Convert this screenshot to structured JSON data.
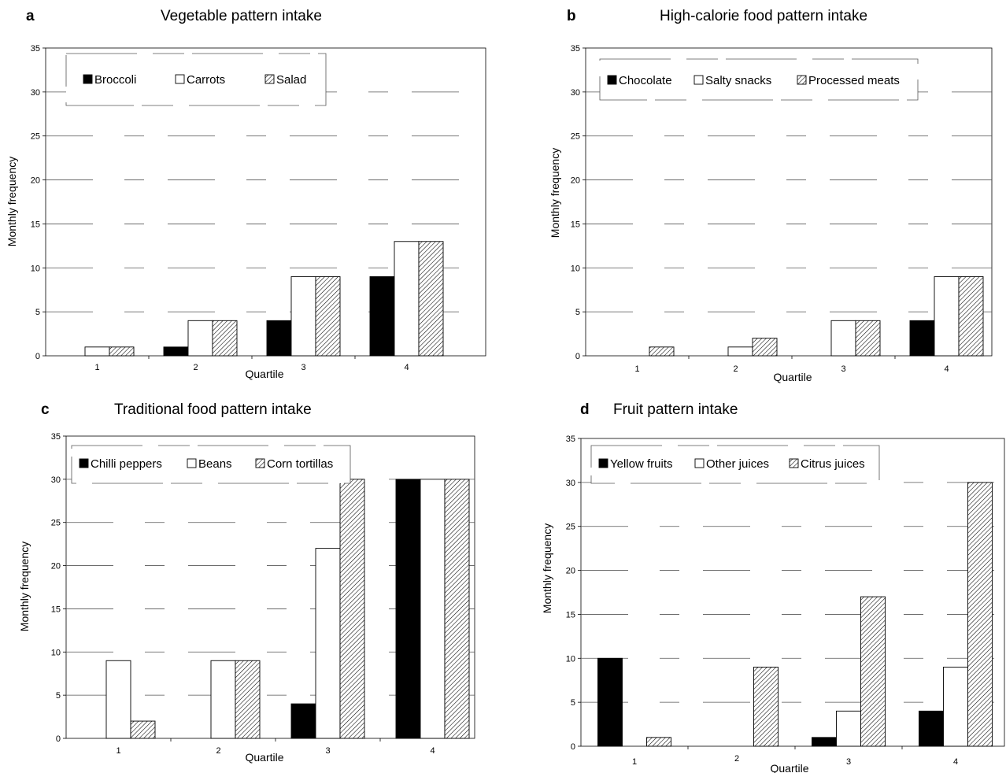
{
  "chart_data": [
    {
      "type": "bar",
      "panel": "a",
      "title": "Vegetable pattern intake",
      "xlabel": "Quartile",
      "ylabel": "Monthly frequency",
      "ylim": [
        0,
        35
      ],
      "yticks": [
        0,
        5,
        10,
        15,
        20,
        25,
        30,
        35
      ],
      "categories": [
        "1",
        "2",
        "3",
        "4"
      ],
      "series": [
        {
          "name": "Broccoli",
          "fill": "solid",
          "values": [
            0,
            1,
            4,
            9
          ]
        },
        {
          "name": "Carrots",
          "fill": "white",
          "values": [
            1,
            4,
            9,
            13
          ]
        },
        {
          "name": "Salad",
          "fill": "hatch",
          "values": [
            1,
            4,
            9,
            13
          ]
        }
      ],
      "grid": true,
      "legend": "top-left"
    },
    {
      "type": "bar",
      "panel": "b",
      "title": "High-calorie food pattern intake",
      "xlabel": "Quartile",
      "ylabel": "Monthly frequency",
      "ylim": [
        0,
        35
      ],
      "yticks": [
        0,
        5,
        10,
        15,
        20,
        25,
        30,
        35
      ],
      "categories": [
        "1",
        "2",
        "3",
        "4"
      ],
      "series": [
        {
          "name": "Chocolate",
          "fill": "solid",
          "values": [
            0,
            0,
            0,
            4
          ]
        },
        {
          "name": "Salty snacks",
          "fill": "white",
          "values": [
            0,
            1,
            4,
            9
          ]
        },
        {
          "name": "Processed meats",
          "fill": "hatch",
          "values": [
            1,
            2,
            4,
            9
          ]
        }
      ],
      "grid": true,
      "legend": "top-left"
    },
    {
      "type": "bar",
      "panel": "c",
      "title": "Traditional food pattern intake",
      "xlabel": "Quartile",
      "ylabel": "Monthly frequency",
      "ylim": [
        0,
        35
      ],
      "yticks": [
        0,
        5,
        10,
        15,
        20,
        25,
        30,
        35
      ],
      "categories": [
        "1",
        "2",
        "3",
        "4"
      ],
      "series": [
        {
          "name": "Chilli peppers",
          "fill": "solid",
          "values": [
            0,
            0,
            4,
            30
          ]
        },
        {
          "name": "Beans",
          "fill": "white",
          "values": [
            9,
            9,
            22,
            30
          ]
        },
        {
          "name": "Corn tortillas",
          "fill": "hatch",
          "values": [
            2,
            9,
            30,
            30
          ]
        }
      ],
      "grid": true,
      "legend": "top-left"
    },
    {
      "type": "bar",
      "panel": "d",
      "title": "Fruit pattern intake",
      "xlabel": "Quartile",
      "ylabel": "Monthly frequency",
      "ylim": [
        0,
        35
      ],
      "yticks": [
        0,
        5,
        10,
        15,
        20,
        25,
        30,
        35
      ],
      "categories": [
        "1",
        "2",
        "3",
        "4"
      ],
      "series": [
        {
          "name": "Yellow fruits",
          "fill": "solid",
          "values": [
            10,
            0,
            1,
            4
          ]
        },
        {
          "name": "Other juices",
          "fill": "white",
          "values": [
            0,
            0,
            4,
            9
          ]
        },
        {
          "name": "Citrus juices",
          "fill": "hatch",
          "values": [
            1,
            9,
            17,
            30
          ]
        }
      ],
      "grid": true,
      "legend": "top-left"
    }
  ]
}
